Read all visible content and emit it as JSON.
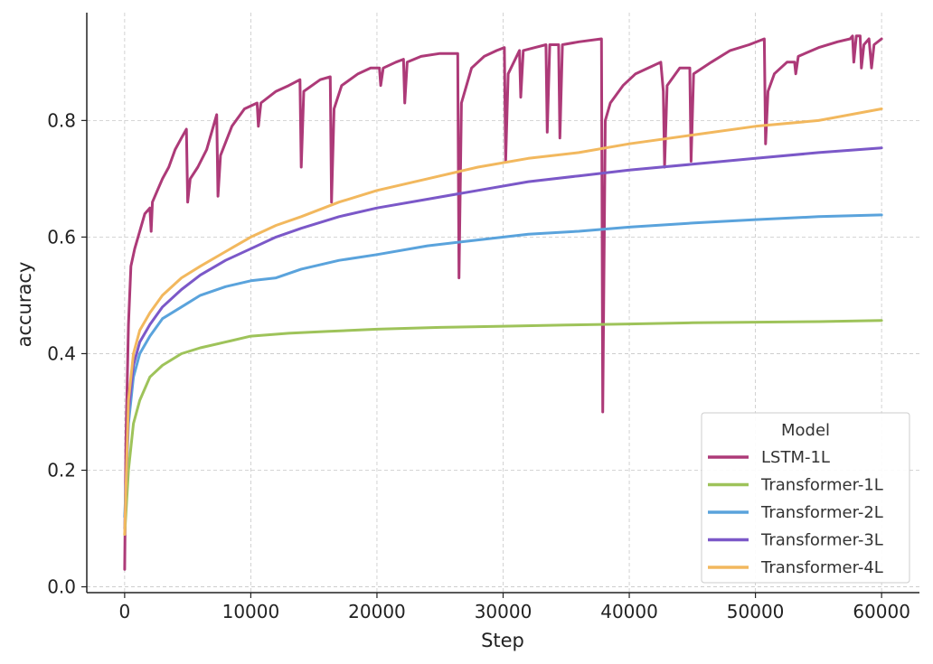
{
  "chart_data": {
    "type": "line",
    "xlabel": "Step",
    "ylabel": "accuracy",
    "xlim": [
      -3000,
      63000
    ],
    "ylim": [
      -0.01,
      0.985
    ],
    "xticks": [
      0,
      10000,
      20000,
      30000,
      40000,
      50000,
      60000
    ],
    "yticks": [
      0.0,
      0.2,
      0.4,
      0.6,
      0.8
    ],
    "xtick_labels": [
      "0",
      "10000",
      "20000",
      "30000",
      "40000",
      "50000",
      "60000"
    ],
    "ytick_labels": [
      "0.0",
      "0.2",
      "0.4",
      "0.6",
      "0.8"
    ],
    "grid": true,
    "legend": {
      "title": "Model",
      "placement": "lower-right"
    },
    "series": [
      {
        "name": "LSTM-1L",
        "color": "#ad3a78",
        "points": [
          [
            0,
            0.03
          ],
          [
            100,
            0.25
          ],
          [
            300,
            0.45
          ],
          [
            500,
            0.55
          ],
          [
            800,
            0.58
          ],
          [
            1200,
            0.61
          ],
          [
            1600,
            0.64
          ],
          [
            2000,
            0.65
          ],
          [
            2100,
            0.61
          ],
          [
            2200,
            0.66
          ],
          [
            2600,
            0.68
          ],
          [
            3000,
            0.7
          ],
          [
            3500,
            0.72
          ],
          [
            4000,
            0.75
          ],
          [
            4500,
            0.77
          ],
          [
            4900,
            0.785
          ],
          [
            5000,
            0.66
          ],
          [
            5200,
            0.7
          ],
          [
            5800,
            0.72
          ],
          [
            6500,
            0.75
          ],
          [
            7300,
            0.81
          ],
          [
            7400,
            0.67
          ],
          [
            7600,
            0.74
          ],
          [
            8500,
            0.79
          ],
          [
            9500,
            0.82
          ],
          [
            10500,
            0.83
          ],
          [
            10600,
            0.79
          ],
          [
            10800,
            0.83
          ],
          [
            12000,
            0.85
          ],
          [
            13000,
            0.86
          ],
          [
            13900,
            0.87
          ],
          [
            14000,
            0.72
          ],
          [
            14200,
            0.85
          ],
          [
            15500,
            0.87
          ],
          [
            16300,
            0.875
          ],
          [
            16400,
            0.66
          ],
          [
            16600,
            0.82
          ],
          [
            17200,
            0.86
          ],
          [
            18500,
            0.88
          ],
          [
            19500,
            0.89
          ],
          [
            20200,
            0.89
          ],
          [
            20300,
            0.86
          ],
          [
            20500,
            0.89
          ],
          [
            21500,
            0.9
          ],
          [
            22100,
            0.905
          ],
          [
            22200,
            0.83
          ],
          [
            22400,
            0.9
          ],
          [
            23500,
            0.91
          ],
          [
            25000,
            0.915
          ],
          [
            26400,
            0.915
          ],
          [
            26500,
            0.53
          ],
          [
            26700,
            0.83
          ],
          [
            27500,
            0.89
          ],
          [
            28500,
            0.91
          ],
          [
            29500,
            0.92
          ],
          [
            30100,
            0.925
          ],
          [
            30200,
            0.73
          ],
          [
            30400,
            0.88
          ],
          [
            31300,
            0.92
          ],
          [
            31400,
            0.84
          ],
          [
            31600,
            0.92
          ],
          [
            32500,
            0.925
          ],
          [
            33400,
            0.93
          ],
          [
            33500,
            0.78
          ],
          [
            33700,
            0.93
          ],
          [
            34400,
            0.93
          ],
          [
            34500,
            0.77
          ],
          [
            34700,
            0.93
          ],
          [
            36000,
            0.935
          ],
          [
            37800,
            0.94
          ],
          [
            37900,
            0.3
          ],
          [
            38100,
            0.8
          ],
          [
            38500,
            0.83
          ],
          [
            39500,
            0.86
          ],
          [
            40500,
            0.88
          ],
          [
            41500,
            0.89
          ],
          [
            42500,
            0.9
          ],
          [
            42700,
            0.85
          ],
          [
            42800,
            0.72
          ],
          [
            43000,
            0.86
          ],
          [
            44000,
            0.89
          ],
          [
            44800,
            0.89
          ],
          [
            44900,
            0.73
          ],
          [
            45100,
            0.88
          ],
          [
            46500,
            0.9
          ],
          [
            48000,
            0.92
          ],
          [
            49500,
            0.93
          ],
          [
            50700,
            0.94
          ],
          [
            50800,
            0.76
          ],
          [
            51000,
            0.85
          ],
          [
            51500,
            0.88
          ],
          [
            52500,
            0.9
          ],
          [
            53100,
            0.9
          ],
          [
            53200,
            0.88
          ],
          [
            53400,
            0.91
          ],
          [
            55000,
            0.925
          ],
          [
            56500,
            0.935
          ],
          [
            57500,
            0.94
          ],
          [
            57700,
            0.945
          ],
          [
            57800,
            0.9
          ],
          [
            58000,
            0.945
          ],
          [
            58300,
            0.945
          ],
          [
            58400,
            0.89
          ],
          [
            58600,
            0.93
          ],
          [
            59000,
            0.94
          ],
          [
            59200,
            0.89
          ],
          [
            59400,
            0.93
          ],
          [
            60000,
            0.94
          ]
        ]
      },
      {
        "name": "Transformer-1L",
        "color": "#9ec35a",
        "points": [
          [
            0,
            0.09
          ],
          [
            300,
            0.2
          ],
          [
            700,
            0.28
          ],
          [
            1200,
            0.32
          ],
          [
            2000,
            0.36
          ],
          [
            3000,
            0.38
          ],
          [
            4500,
            0.4
          ],
          [
            6000,
            0.41
          ],
          [
            8000,
            0.42
          ],
          [
            10000,
            0.43
          ],
          [
            13000,
            0.435
          ],
          [
            16000,
            0.438
          ],
          [
            20000,
            0.442
          ],
          [
            25000,
            0.445
          ],
          [
            30000,
            0.447
          ],
          [
            35000,
            0.449
          ],
          [
            40000,
            0.451
          ],
          [
            45000,
            0.453
          ],
          [
            50000,
            0.454
          ],
          [
            55000,
            0.455
          ],
          [
            60000,
            0.457
          ]
        ]
      },
      {
        "name": "Transformer-2L",
        "color": "#5aa3dc",
        "points": [
          [
            0,
            0.12
          ],
          [
            300,
            0.28
          ],
          [
            700,
            0.36
          ],
          [
            1200,
            0.4
          ],
          [
            2000,
            0.43
          ],
          [
            3000,
            0.46
          ],
          [
            4500,
            0.48
          ],
          [
            6000,
            0.5
          ],
          [
            8000,
            0.515
          ],
          [
            10000,
            0.525
          ],
          [
            12000,
            0.53
          ],
          [
            14000,
            0.545
          ],
          [
            17000,
            0.56
          ],
          [
            20000,
            0.57
          ],
          [
            24000,
            0.585
          ],
          [
            28000,
            0.595
          ],
          [
            32000,
            0.605
          ],
          [
            36000,
            0.61
          ],
          [
            40000,
            0.617
          ],
          [
            45000,
            0.624
          ],
          [
            50000,
            0.63
          ],
          [
            55000,
            0.635
          ],
          [
            60000,
            0.638
          ]
        ]
      },
      {
        "name": "Transformer-3L",
        "color": "#7b58c8",
        "points": [
          [
            0,
            0.1
          ],
          [
            300,
            0.3
          ],
          [
            700,
            0.38
          ],
          [
            1200,
            0.42
          ],
          [
            2000,
            0.45
          ],
          [
            3000,
            0.48
          ],
          [
            4500,
            0.51
          ],
          [
            6000,
            0.535
          ],
          [
            8000,
            0.56
          ],
          [
            10000,
            0.58
          ],
          [
            12000,
            0.6
          ],
          [
            14000,
            0.615
          ],
          [
            17000,
            0.635
          ],
          [
            20000,
            0.65
          ],
          [
            24000,
            0.665
          ],
          [
            28000,
            0.68
          ],
          [
            32000,
            0.695
          ],
          [
            36000,
            0.705
          ],
          [
            40000,
            0.715
          ],
          [
            45000,
            0.725
          ],
          [
            50000,
            0.735
          ],
          [
            55000,
            0.745
          ],
          [
            60000,
            0.753
          ]
        ]
      },
      {
        "name": "Transformer-4L",
        "color": "#f2b85e",
        "points": [
          [
            0,
            0.09
          ],
          [
            300,
            0.32
          ],
          [
            700,
            0.4
          ],
          [
            1200,
            0.44
          ],
          [
            2000,
            0.47
          ],
          [
            3000,
            0.5
          ],
          [
            4500,
            0.53
          ],
          [
            6000,
            0.55
          ],
          [
            8000,
            0.575
          ],
          [
            10000,
            0.6
          ],
          [
            12000,
            0.62
          ],
          [
            14000,
            0.635
          ],
          [
            17000,
            0.66
          ],
          [
            20000,
            0.68
          ],
          [
            24000,
            0.7
          ],
          [
            28000,
            0.72
          ],
          [
            32000,
            0.735
          ],
          [
            36000,
            0.745
          ],
          [
            40000,
            0.76
          ],
          [
            45000,
            0.775
          ],
          [
            50000,
            0.79
          ],
          [
            55000,
            0.8
          ],
          [
            60000,
            0.82
          ]
        ]
      }
    ]
  }
}
